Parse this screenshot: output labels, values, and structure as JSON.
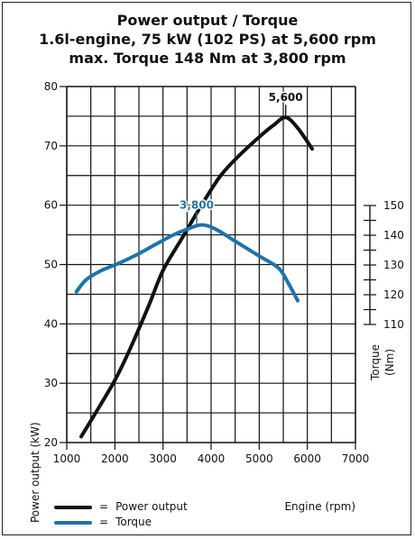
{
  "titles": {
    "line1": "Power output / Torque",
    "line2": "1.6l-engine, 75 kW (102 PS) at 5,600 rpm",
    "line3": "max. Torque 148 Nm at 3,800 rpm"
  },
  "legend": {
    "equals": "=",
    "power_label": "Power output",
    "torque_label": "Torque"
  },
  "colors": {
    "power": "#111111",
    "torque": "#1e73ab",
    "grid": "#111111"
  },
  "chart_data": {
    "type": "line",
    "title": "Power output / Torque",
    "subtitle": "1.6l-engine, 75 kW (102 PS) at 5,600 rpm / max. Torque 148 Nm at 3,800 rpm",
    "xlabel": "Engine (rpm)",
    "ylabel": "Power output (kW)",
    "y2label": "Torque (Nm)",
    "xlim": [
      1000,
      7000
    ],
    "ylim": [
      20,
      80
    ],
    "y2lim": [
      110,
      150
    ],
    "xticks": [
      1000,
      2000,
      3000,
      4000,
      5000,
      6000,
      7000
    ],
    "yticks": [
      20,
      30,
      40,
      50,
      60,
      70,
      80
    ],
    "y2ticks": [
      110,
      120,
      130,
      140,
      150
    ],
    "grid": true,
    "legend_position": "bottom-left",
    "series": [
      {
        "name": "Power output",
        "axis": "left",
        "x": [
          1300,
          1600,
          2000,
          2300,
          2700,
          3000,
          3400,
          3800,
          4200,
          4600,
          5000,
          5300,
          5550,
          5800,
          6100
        ],
        "y": [
          21,
          25,
          30.5,
          35.5,
          43,
          49,
          54.5,
          60,
          65,
          68.5,
          71.5,
          73.5,
          74.8,
          73,
          69.5
        ]
      },
      {
        "name": "Torque",
        "axis": "right",
        "x": [
          1200,
          1400,
          1700,
          2000,
          2400,
          2800,
          3200,
          3500,
          3800,
          4100,
          4500,
          5000,
          5400,
          5600,
          5800
        ],
        "y": [
          121,
          125,
          128,
          130,
          133,
          136.5,
          140,
          142,
          143.5,
          142,
          138,
          133,
          129,
          124,
          118
        ]
      }
    ],
    "annotations": [
      {
        "text": "5,600",
        "series": "Power output",
        "x": 5550,
        "y": 74.8
      },
      {
        "text": "3,800",
        "series": "Torque",
        "x": 3700,
        "y": 143.5
      }
    ]
  }
}
